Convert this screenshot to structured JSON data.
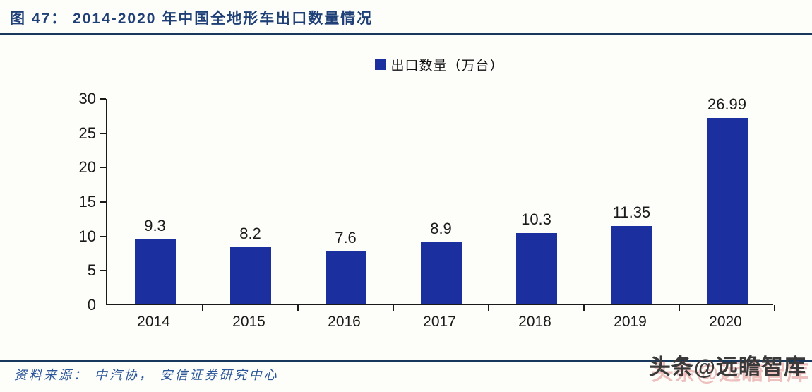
{
  "header": {
    "figure_title": "图 47：  2014-2020 年中国全地形车出口数量情况"
  },
  "legend": {
    "label": "出口数量（万台）",
    "swatch_color": "#1B2F9F"
  },
  "chart_data": {
    "type": "bar",
    "title": "2014-2020 年中国全地形车出口数量情况",
    "categories": [
      "2014",
      "2015",
      "2016",
      "2017",
      "2018",
      "2019",
      "2020"
    ],
    "values": [
      9.3,
      8.2,
      7.6,
      8.9,
      10.3,
      11.35,
      26.99
    ],
    "value_labels": [
      "9.3",
      "8.2",
      "7.6",
      "8.9",
      "10.3",
      "11.35",
      "26.99"
    ],
    "series_name": "出口数量（万台）",
    "ylim": [
      0,
      30
    ],
    "yticks": [
      0,
      5,
      10,
      15,
      20,
      25,
      30
    ],
    "bar_color": "#1B2F9F",
    "grid": false,
    "legend_position": "top-center",
    "xlabel": "",
    "ylabel": ""
  },
  "footer": {
    "source": "资料来源：  中汽协，  安信证券研究中心",
    "watermark": "头条@远瞻智库"
  },
  "colors": {
    "title_text": "#1F4077",
    "rule": "#17375D",
    "bar": "#1B2F9F",
    "axis": "#1a1a1a",
    "source_text": "#2B5699",
    "watermark_text": "#3A3A3A"
  }
}
